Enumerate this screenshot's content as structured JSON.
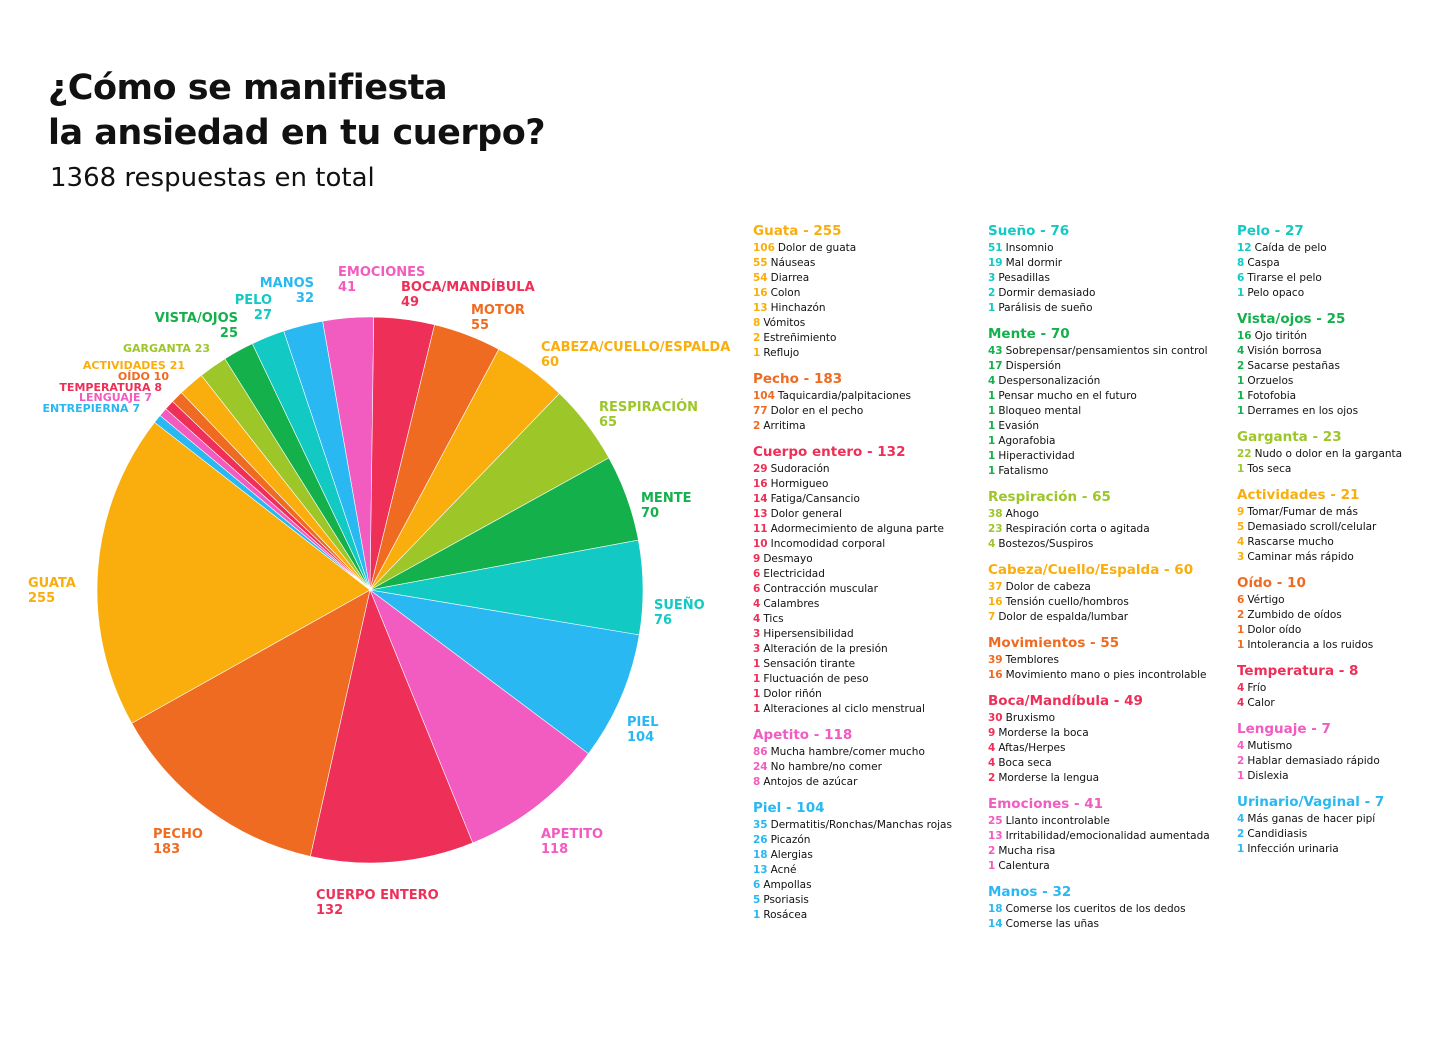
{
  "title_lines": [
    "¿Cómo se manifiesta",
    "la ansiedad en tu cuerpo?"
  ],
  "subtitle": "1368 respuestas en total",
  "chart_data": {
    "type": "pie",
    "title": "¿Cómo se manifiesta la ansiedad en tu cuerpo?",
    "subtitle": "1368 respuestas en total",
    "slices": [
      {
        "label": "EMOCIONES",
        "value": 41,
        "color": "#F25BC0"
      },
      {
        "label": "BOCA/MANDÍBULA",
        "value": 49,
        "color": "#EE2F57"
      },
      {
        "label": "MOTOR",
        "value": 55,
        "color": "#EF6B22"
      },
      {
        "label": "CABEZA/CUELLO/ESPALDA",
        "value": 60,
        "color": "#F9AE0E"
      },
      {
        "label": "RESPIRACIÓN",
        "value": 65,
        "color": "#9DC629"
      },
      {
        "label": "MENTE",
        "value": 70,
        "color": "#14B04B"
      },
      {
        "label": "SUEÑO",
        "value": 76,
        "color": "#13C9C3"
      },
      {
        "label": "PIEL",
        "value": 104,
        "color": "#29B8F2"
      },
      {
        "label": "APETITO",
        "value": 118,
        "color": "#F25BC0"
      },
      {
        "label": "CUERPO ENTERO",
        "value": 132,
        "color": "#EE2F57"
      },
      {
        "label": "PECHO",
        "value": 183,
        "color": "#EF6B22"
      },
      {
        "label": "GUATA",
        "value": 255,
        "color": "#F9AE0E"
      },
      {
        "label": "ENTREPIERNA",
        "value": 7,
        "color": "#29B8F2"
      },
      {
        "label": "LENGUAJE",
        "value": 7,
        "color": "#F25BC0"
      },
      {
        "label": "TEMPERATURA",
        "value": 8,
        "color": "#EE2F57"
      },
      {
        "label": "OÍDO",
        "value": 10,
        "color": "#EF6B22"
      },
      {
        "label": "ACTIVIDADES",
        "value": 21,
        "color": "#F9AE0E"
      },
      {
        "label": "GARGANTA",
        "value": 23,
        "color": "#9DC629"
      },
      {
        "label": "VISTA/OJOS",
        "value": 25,
        "color": "#14B04B"
      },
      {
        "label": "PELO",
        "value": 27,
        "color": "#13C9C3"
      },
      {
        "label": "MANOS",
        "value": 32,
        "color": "#29B8F2"
      }
    ]
  },
  "legend": {
    "columns": [
      [
        {
          "title": "Guata - 255",
          "color": "#F9AE0E",
          "items": [
            {
              "n": "106",
              "t": "Dolor de guata"
            },
            {
              "n": "55",
              "t": "Náuseas"
            },
            {
              "n": "54",
              "t": "Diarrea"
            },
            {
              "n": "16",
              "t": "Colon"
            },
            {
              "n": "13",
              "t": "Hinchazón"
            },
            {
              "n": "8",
              "t": "Vómitos"
            },
            {
              "n": "2",
              "t": "Estreñimiento"
            },
            {
              "n": "1",
              "t": "Reflujo"
            }
          ]
        },
        {
          "title": "Pecho - 183",
          "color": "#EF6B22",
          "items": [
            {
              "n": "104",
              "t": "Taquicardia/palpitaciones"
            },
            {
              "n": "77",
              "t": "Dolor en el pecho"
            },
            {
              "n": "2",
              "t": "Arritima"
            }
          ]
        },
        {
          "title": "Cuerpo entero - 132",
          "color": "#EE2F57",
          "items": [
            {
              "n": "29",
              "t": "Sudoración"
            },
            {
              "n": "16",
              "t": "Hormigueo"
            },
            {
              "n": "14",
              "t": "Fatiga/Cansancio"
            },
            {
              "n": "13",
              "t": "Dolor general"
            },
            {
              "n": "11",
              "t": "Adormecimiento de alguna parte"
            },
            {
              "n": "10",
              "t": "Incomodidad corporal"
            },
            {
              "n": "9",
              "t": "Desmayo"
            },
            {
              "n": "6",
              "t": "Electricidad"
            },
            {
              "n": "6",
              "t": "Contracción muscular"
            },
            {
              "n": "4",
              "t": "Calambres"
            },
            {
              "n": "4",
              "t": "Tics"
            },
            {
              "n": "3",
              "t": "Hipersensibilidad"
            },
            {
              "n": "3",
              "t": "Alteración de la presión"
            },
            {
              "n": "1",
              "t": "Sensación tirante"
            },
            {
              "n": "1",
              "t": "Fluctuación de peso"
            },
            {
              "n": "1",
              "t": "Dolor riñón"
            },
            {
              "n": "1",
              "t": "Alteraciones al ciclo menstrual"
            }
          ]
        },
        {
          "title": "Apetito - 118",
          "color": "#F25BC0",
          "items": [
            {
              "n": "86",
              "t": "Mucha hambre/comer mucho"
            },
            {
              "n": "24",
              "t": "No hambre/no comer"
            },
            {
              "n": "8",
              "t": "Antojos de azúcar"
            }
          ]
        },
        {
          "title": "Piel - 104",
          "color": "#29B8F2",
          "items": [
            {
              "n": "35",
              "t": "Dermatitis/Ronchas/Manchas rojas"
            },
            {
              "n": "26",
              "t": "Picazón"
            },
            {
              "n": "18",
              "t": "Alergias"
            },
            {
              "n": "13",
              "t": "Acné"
            },
            {
              "n": "6",
              "t": "Ampollas"
            },
            {
              "n": "5",
              "t": "Psoriasis"
            },
            {
              "n": "1",
              "t": "Rosácea"
            }
          ]
        }
      ],
      [
        {
          "title": "Sueño - 76",
          "color": "#13C9C3",
          "items": [
            {
              "n": "51",
              "t": "Insomnio"
            },
            {
              "n": "19",
              "t": "Mal dormir"
            },
            {
              "n": "3",
              "t": "Pesadillas"
            },
            {
              "n": "2",
              "t": "Dormir demasiado"
            },
            {
              "n": "1",
              "t": "Parálisis de sueño"
            }
          ]
        },
        {
          "title": "Mente - 70",
          "color": "#14B04B",
          "items": [
            {
              "n": "43",
              "t": "Sobrepensar/pensamientos sin control"
            },
            {
              "n": "17",
              "t": "Dispersión"
            },
            {
              "n": "4",
              "t": "Despersonalización"
            },
            {
              "n": "1",
              "t": "Pensar mucho en el futuro"
            },
            {
              "n": "1",
              "t": "Bloqueo mental"
            },
            {
              "n": "1",
              "t": "Evasión"
            },
            {
              "n": "1",
              "t": "Agorafobia"
            },
            {
              "n": "1",
              "t": "Hiperactividad"
            },
            {
              "n": "1",
              "t": "Fatalismo"
            }
          ]
        },
        {
          "title": "Respiración - 65",
          "color": "#9DC629",
          "items": [
            {
              "n": "38",
              "t": "Ahogo"
            },
            {
              "n": "23",
              "t": "Respiración corta o agitada"
            },
            {
              "n": "4",
              "t": "Bostezos/Suspiros"
            }
          ]
        },
        {
          "title": "Cabeza/Cuello/Espalda - 60",
          "color": "#F9AE0E",
          "items": [
            {
              "n": "37",
              "t": "Dolor de cabeza"
            },
            {
              "n": "16",
              "t": "Tensión cuello/hombros"
            },
            {
              "n": "7",
              "t": "Dolor de espalda/lumbar"
            }
          ]
        },
        {
          "title": "Movimientos - 55",
          "color": "#EF6B22",
          "items": [
            {
              "n": "39",
              "t": "Temblores"
            },
            {
              "n": "16",
              "t": "Movimiento mano o pies incontrolable"
            }
          ]
        },
        {
          "title": "Boca/Mandíbula - 49",
          "color": "#EE2F57",
          "items": [
            {
              "n": "30",
              "t": "Bruxismo"
            },
            {
              "n": "9",
              "t": "Morderse la boca"
            },
            {
              "n": "4",
              "t": "Aftas/Herpes"
            },
            {
              "n": "4",
              "t": "Boca seca"
            },
            {
              "n": "2",
              "t": "Morderse la lengua"
            }
          ]
        },
        {
          "title": "Emociones - 41",
          "color": "#F25BC0",
          "items": [
            {
              "n": "25",
              "t": "Llanto incontrolable"
            },
            {
              "n": "13",
              "t": "Irritabilidad/emocionalidad aumentada"
            },
            {
              "n": "2",
              "t": "Mucha risa"
            },
            {
              "n": "1",
              "t": "Calentura"
            }
          ]
        },
        {
          "title": "Manos - 32",
          "color": "#29B8F2",
          "items": [
            {
              "n": "18",
              "t": "Comerse los cueritos de los dedos"
            },
            {
              "n": "14",
              "t": "Comerse las uñas"
            }
          ]
        }
      ],
      [
        {
          "title": "Pelo - 27",
          "color": "#13C9C3",
          "items": [
            {
              "n": "12",
              "t": "Caída de pelo"
            },
            {
              "n": "8",
              "t": "Caspa"
            },
            {
              "n": "6",
              "t": "Tirarse el pelo"
            },
            {
              "n": "1",
              "t": "Pelo opaco"
            }
          ]
        },
        {
          "title": "Vista/ojos - 25",
          "color": "#14B04B",
          "items": [
            {
              "n": "16",
              "t": "Ojo tiritón"
            },
            {
              "n": "4",
              "t": "Visión borrosa"
            },
            {
              "n": "2",
              "t": "Sacarse pestañas"
            },
            {
              "n": "1",
              "t": "Orzuelos"
            },
            {
              "n": "1",
              "t": "Fotofobia"
            },
            {
              "n": "1",
              "t": "Derrames en los ojos"
            }
          ]
        },
        {
          "title": "Garganta - 23",
          "color": "#9DC629",
          "items": [
            {
              "n": "22",
              "t": "Nudo o dolor en la garganta"
            },
            {
              "n": "1",
              "t": "Tos seca"
            }
          ]
        },
        {
          "title": "Actividades - 21",
          "color": "#F9AE0E",
          "items": [
            {
              "n": "9",
              "t": "Tomar/Fumar de más"
            },
            {
              "n": "5",
              "t": "Demasiado scroll/celular"
            },
            {
              "n": "4",
              "t": "Rascarse mucho"
            },
            {
              "n": "3",
              "t": "Caminar más rápido"
            }
          ]
        },
        {
          "title": "Oído - 10",
          "color": "#EF6B22",
          "items": [
            {
              "n": "6",
              "t": "Vértigo"
            },
            {
              "n": "2",
              "t": "Zumbido de oídos"
            },
            {
              "n": "1",
              "t": "Dolor oído"
            },
            {
              "n": "1",
              "t": "Intolerancia a los ruidos"
            }
          ]
        },
        {
          "title": "Temperatura - 8",
          "color": "#EE2F57",
          "items": [
            {
              "n": "4",
              "t": "Frío"
            },
            {
              "n": "4",
              "t": "Calor"
            }
          ]
        },
        {
          "title": "Lenguaje - 7",
          "color": "#F25BC0",
          "items": [
            {
              "n": "4",
              "t": "Mutismo"
            },
            {
              "n": "2",
              "t": "Hablar demasiado rápido"
            },
            {
              "n": "1",
              "t": "Dislexia"
            }
          ]
        },
        {
          "title": "Urinario/Vaginal - 7",
          "color": "#29B8F2",
          "items": [
            {
              "n": "4",
              "t": "Más ganas de hacer pipí"
            },
            {
              "n": "2",
              "t": "Candidiasis"
            },
            {
              "n": "1",
              "t": "Infección urinaria"
            }
          ]
        }
      ]
    ]
  }
}
